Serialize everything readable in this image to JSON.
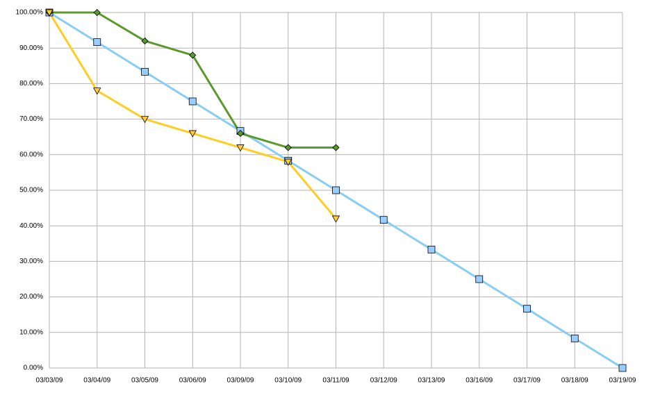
{
  "chart_data": {
    "type": "line",
    "categories": [
      "03/03/09",
      "03/04/09",
      "03/05/09",
      "03/06/09",
      "03/09/09",
      "03/10/09",
      "03/11/09",
      "03/12/09",
      "03/13/09",
      "03/16/09",
      "03/17/09",
      "03/18/09",
      "03/19/09"
    ],
    "series": [
      {
        "color": "#87cdf5",
        "marker": "square",
        "marker_color": "#99ccff",
        "values": [
          100,
          91.67,
          83.33,
          75,
          66.67,
          58.33,
          50,
          41.67,
          33.33,
          25,
          16.67,
          8.33,
          0
        ]
      },
      {
        "color": "#5b9a2a",
        "marker": "diamond",
        "marker_color": "#5b9a2a",
        "values": [
          100,
          100,
          92,
          88,
          66,
          62,
          62,
          null,
          null,
          null,
          null,
          null,
          null
        ]
      },
      {
        "color": "#ffcc22",
        "marker": "triangle-down",
        "marker_color": "#ffcc33",
        "values": [
          100,
          78,
          70,
          66,
          62,
          58,
          42,
          null,
          null,
          null,
          null,
          null,
          null
        ]
      }
    ],
    "ylim": [
      0,
      100
    ],
    "yticks": [
      {
        "value": 0,
        "label": "0.00%"
      },
      {
        "value": 10,
        "label": "10.00%"
      },
      {
        "value": 20,
        "label": "20.00%"
      },
      {
        "value": 30,
        "label": "30.00%"
      },
      {
        "value": 40,
        "label": "40.00%"
      },
      {
        "value": 50,
        "label": "50.00%"
      },
      {
        "value": 60,
        "label": "60.00%"
      },
      {
        "value": 70,
        "label": "70.00%"
      },
      {
        "value": 80,
        "label": "80.00%"
      },
      {
        "value": 90,
        "label": "90.00%"
      },
      {
        "value": 100,
        "label": "100.00%"
      }
    ],
    "grid": true
  }
}
